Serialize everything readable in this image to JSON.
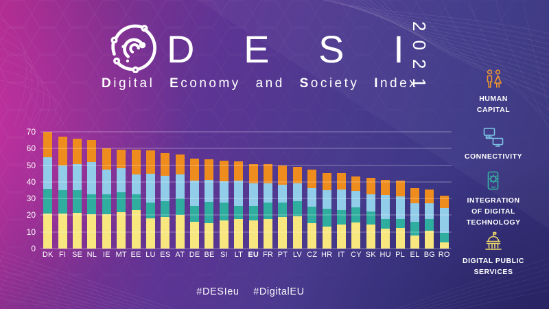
{
  "header": {
    "brand": "DESI",
    "year": "2021",
    "subtitle_segments": [
      {
        "text": "D",
        "bold": true
      },
      {
        "text": "igital ",
        "bold": false
      },
      {
        "text": "E",
        "bold": true
      },
      {
        "text": "conomy and ",
        "bold": false
      },
      {
        "text": "S",
        "bold": true
      },
      {
        "text": "ociety ",
        "bold": false
      },
      {
        "text": "I",
        "bold": true
      },
      {
        "text": "ndex",
        "bold": false
      }
    ]
  },
  "sidebar": {
    "items": [
      {
        "name": "human-capital",
        "lines": [
          "HUMAN",
          "CAPITAL"
        ],
        "icon": "people-icon",
        "color": "#F0962C"
      },
      {
        "name": "connectivity",
        "lines": [
          "CONNECTIVITY"
        ],
        "icon": "monitors-icon",
        "color": "#7EC3E8"
      },
      {
        "name": "integration-of-digital-technology",
        "lines": [
          "INTEGRATION",
          "OF DIGITAL",
          "TECHNOLOGY"
        ],
        "icon": "phone-gear-icon",
        "color": "#35B3A3"
      },
      {
        "name": "digital-public-services",
        "lines": [
          "DIGITAL PUBLIC",
          "SERVICES"
        ],
        "icon": "government-building-icon",
        "color": "#EFD969"
      }
    ]
  },
  "footer": {
    "hashtags": [
      "#DESIeu",
      "#DigitalEU"
    ]
  },
  "colors": {
    "background_left": "#AB2C8D",
    "background_right": "#343078",
    "text": "#FFFFFF",
    "gridline": "rgba(255,255,255,0.36)"
  },
  "chart_data": {
    "type": "bar",
    "stacked": true,
    "stack_order": "bottom-to-top",
    "title": "",
    "xlabel": "",
    "ylabel": "",
    "ylim": [
      0,
      70
    ],
    "yticks": [
      0,
      10,
      20,
      30,
      40,
      50,
      60,
      70
    ],
    "grid": "horizontal, overlaid on bars",
    "legend_position": "right sidebar (icons)",
    "bold_category": "EU",
    "categories": [
      "DK",
      "FI",
      "SE",
      "NL",
      "IE",
      "MT",
      "EE",
      "LU",
      "ES",
      "AT",
      "DE",
      "BE",
      "SI",
      "LT",
      "EU",
      "FR",
      "PT",
      "LV",
      "CZ",
      "HR",
      "IT",
      "CY",
      "SK",
      "HU",
      "PL",
      "EL",
      "BG",
      "RO"
    ],
    "series": [
      {
        "name": "Digital Public Services",
        "color": "#F8E67F",
        "values": [
          21.0,
          21.1,
          21.6,
          20.5,
          20.5,
          21.7,
          23.2,
          18.2,
          19.0,
          20.0,
          15.9,
          15.1,
          16.7,
          17.8,
          17.0,
          17.9,
          19.1,
          19.5,
          15.2,
          13.0,
          14.6,
          15.7,
          14.3,
          11.8,
          12.4,
          7.9,
          10.9,
          3.8
        ]
      },
      {
        "name": "Integration of Digital Technology",
        "color": "#2FAE9F",
        "values": [
          15.0,
          13.9,
          13.4,
          11.9,
          11.9,
          12.1,
          9.4,
          9.6,
          9.6,
          10.0,
          9.7,
          13.0,
          10.7,
          7.7,
          8.6,
          9.5,
          8.7,
          9.0,
          9.8,
          11.0,
          8.6,
          8.9,
          8.0,
          5.9,
          5.3,
          8.1,
          6.9,
          5.5
        ]
      },
      {
        "name": "Connectivity",
        "color": "#91CCE9",
        "values": [
          18.8,
          14.8,
          15.8,
          19.3,
          14.8,
          14.3,
          11.8,
          17.0,
          15.1,
          14.6,
          15.0,
          13.1,
          13.0,
          15.1,
          13.4,
          11.6,
          10.7,
          10.7,
          11.2,
          11.2,
          12.2,
          10.1,
          10.3,
          14.3,
          13.8,
          11.3,
          9.3,
          15.1
        ]
      },
      {
        "name": "Human Capital",
        "color": "#EF8C1E",
        "values": [
          15.3,
          17.3,
          15.3,
          13.4,
          13.1,
          11.4,
          14.8,
          13.9,
          13.7,
          11.8,
          13.5,
          12.5,
          12.4,
          11.7,
          11.7,
          11.6,
          11.3,
          9.8,
          11.2,
          10.3,
          9.9,
          8.7,
          10.0,
          9.2,
          9.4,
          8.9,
          8.4,
          7.2
        ]
      }
    ]
  }
}
